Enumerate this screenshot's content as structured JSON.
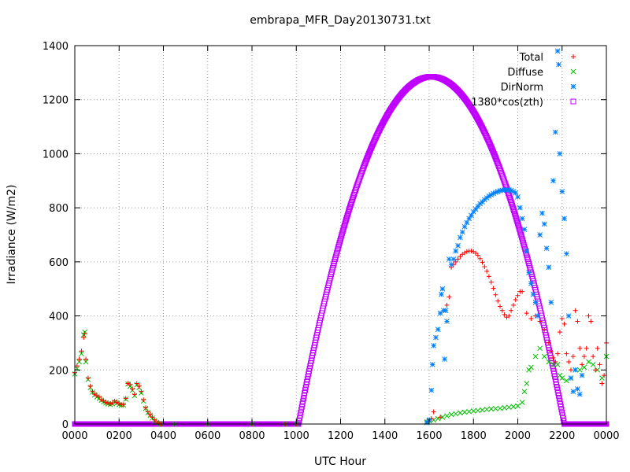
{
  "chart_data": {
    "type": "scatter",
    "title": "embrapa_MFR_Day20130731.txt",
    "xlabel": "UTC Hour",
    "ylabel": "Irradiance (W/m2)",
    "xlim": [
      0,
      24
    ],
    "ylim": [
      0,
      1400
    ],
    "grid": true,
    "legend_position": "top-right",
    "x_ticks": [
      {
        "value": 0,
        "label": "0000"
      },
      {
        "value": 2,
        "label": "0200"
      },
      {
        "value": 4,
        "label": "0400"
      },
      {
        "value": 6,
        "label": "0600"
      },
      {
        "value": 8,
        "label": "0800"
      },
      {
        "value": 10,
        "label": "1000"
      },
      {
        "value": 12,
        "label": "1200"
      },
      {
        "value": 14,
        "label": "1400"
      },
      {
        "value": 16,
        "label": "1600"
      },
      {
        "value": 18,
        "label": "1800"
      },
      {
        "value": 20,
        "label": "2000"
      },
      {
        "value": 22,
        "label": "2200"
      },
      {
        "value": 24,
        "label": "0000"
      }
    ],
    "y_ticks": [
      0,
      200,
      400,
      600,
      800,
      1000,
      1200,
      1400
    ],
    "series": [
      {
        "name": "Total",
        "marker": "plus",
        "color": "#ff0000",
        "points": [
          [
            0.0,
            190
          ],
          [
            0.1,
            215
          ],
          [
            0.2,
            240
          ],
          [
            0.3,
            270
          ],
          [
            0.4,
            320
          ],
          [
            0.45,
            335
          ],
          [
            0.5,
            240
          ],
          [
            0.6,
            170
          ],
          [
            0.7,
            140
          ],
          [
            0.8,
            120
          ],
          [
            0.9,
            110
          ],
          [
            1.0,
            105
          ],
          [
            1.1,
            100
          ],
          [
            1.2,
            90
          ],
          [
            1.3,
            85
          ],
          [
            1.4,
            80
          ],
          [
            1.5,
            78
          ],
          [
            1.6,
            75
          ],
          [
            1.7,
            78
          ],
          [
            1.8,
            85
          ],
          [
            1.9,
            80
          ],
          [
            2.0,
            75
          ],
          [
            2.1,
            72
          ],
          [
            2.2,
            72
          ],
          [
            2.3,
            95
          ],
          [
            2.4,
            150
          ],
          [
            2.5,
            145
          ],
          [
            2.6,
            130
          ],
          [
            2.7,
            110
          ],
          [
            2.8,
            150
          ],
          [
            2.9,
            140
          ],
          [
            3.0,
            120
          ],
          [
            3.1,
            90
          ],
          [
            3.2,
            60
          ],
          [
            3.3,
            45
          ],
          [
            3.4,
            35
          ],
          [
            3.5,
            25
          ],
          [
            3.6,
            15
          ],
          [
            3.7,
            8
          ],
          [
            3.8,
            3
          ],
          [
            3.9,
            0
          ],
          [
            4.5,
            0
          ],
          [
            6.0,
            0
          ],
          [
            8.0,
            0
          ],
          [
            9.5,
            0
          ],
          [
            10.0,
            0
          ],
          [
            15.9,
            10
          ],
          [
            16.1,
            20
          ],
          [
            16.2,
            45
          ],
          [
            16.5,
            25
          ],
          [
            16.8,
            440
          ],
          [
            16.9,
            470
          ],
          [
            17.0,
            580
          ],
          [
            17.1,
            590
          ],
          [
            17.2,
            600
          ],
          [
            17.3,
            610
          ],
          [
            17.4,
            620
          ],
          [
            17.5,
            628
          ],
          [
            17.6,
            633
          ],
          [
            17.7,
            638
          ],
          [
            17.8,
            640
          ],
          [
            17.9,
            640
          ],
          [
            18.0,
            638
          ],
          [
            18.1,
            632
          ],
          [
            18.2,
            624
          ],
          [
            18.3,
            612
          ],
          [
            18.4,
            598
          ],
          [
            18.5,
            582
          ],
          [
            18.6,
            565
          ],
          [
            18.7,
            546
          ],
          [
            18.8,
            525
          ],
          [
            18.9,
            502
          ],
          [
            19.0,
            478
          ],
          [
            19.1,
            455
          ],
          [
            19.2,
            435
          ],
          [
            19.3,
            420
          ],
          [
            19.4,
            405
          ],
          [
            19.5,
            395
          ],
          [
            19.6,
            400
          ],
          [
            19.7,
            420
          ],
          [
            19.8,
            440
          ],
          [
            19.9,
            460
          ],
          [
            20.0,
            475
          ],
          [
            20.1,
            490
          ],
          [
            20.2,
            490
          ],
          [
            20.4,
            410
          ],
          [
            20.6,
            390
          ],
          [
            20.8,
            400
          ],
          [
            21.0,
            380
          ],
          [
            21.2,
            350
          ],
          [
            21.4,
            300
          ],
          [
            21.5,
            270
          ],
          [
            21.6,
            245
          ],
          [
            21.7,
            230
          ],
          [
            21.8,
            260
          ],
          [
            21.9,
            340
          ],
          [
            22.0,
            390
          ],
          [
            22.1,
            370
          ],
          [
            22.2,
            260
          ],
          [
            22.3,
            230
          ],
          [
            22.4,
            200
          ],
          [
            22.5,
            250
          ],
          [
            22.6,
            420
          ],
          [
            22.7,
            380
          ],
          [
            22.8,
            280
          ],
          [
            22.9,
            220
          ],
          [
            23.0,
            250
          ],
          [
            23.1,
            280
          ],
          [
            23.2,
            400
          ],
          [
            23.3,
            380
          ],
          [
            23.4,
            250
          ],
          [
            23.5,
            200
          ],
          [
            23.6,
            280
          ],
          [
            23.7,
            220
          ],
          [
            23.8,
            150
          ],
          [
            23.9,
            180
          ],
          [
            24.0,
            300
          ]
        ]
      },
      {
        "name": "Diffuse",
        "marker": "cross",
        "color": "#00c000",
        "points": [
          [
            0.0,
            185
          ],
          [
            0.1,
            205
          ],
          [
            0.2,
            230
          ],
          [
            0.3,
            260
          ],
          [
            0.4,
            330
          ],
          [
            0.45,
            340
          ],
          [
            0.5,
            230
          ],
          [
            0.6,
            165
          ],
          [
            0.7,
            135
          ],
          [
            0.8,
            118
          ],
          [
            0.9,
            108
          ],
          [
            1.0,
            100
          ],
          [
            1.1,
            95
          ],
          [
            1.2,
            88
          ],
          [
            1.3,
            82
          ],
          [
            1.4,
            78
          ],
          [
            1.5,
            75
          ],
          [
            1.6,
            72
          ],
          [
            1.7,
            75
          ],
          [
            1.8,
            82
          ],
          [
            1.9,
            78
          ],
          [
            2.0,
            72
          ],
          [
            2.1,
            70
          ],
          [
            2.2,
            70
          ],
          [
            2.3,
            92
          ],
          [
            2.4,
            148
          ],
          [
            2.5,
            140
          ],
          [
            2.6,
            125
          ],
          [
            2.7,
            105
          ],
          [
            2.8,
            145
          ],
          [
            2.9,
            135
          ],
          [
            3.0,
            115
          ],
          [
            3.1,
            85
          ],
          [
            3.2,
            58
          ],
          [
            3.3,
            42
          ],
          [
            3.4,
            32
          ],
          [
            3.5,
            22
          ],
          [
            3.6,
            12
          ],
          [
            3.7,
            6
          ],
          [
            3.8,
            2
          ],
          [
            3.9,
            0
          ],
          [
            4.5,
            0
          ],
          [
            6.0,
            0
          ],
          [
            8.0,
            0
          ],
          [
            9.5,
            0
          ],
          [
            10.0,
            0
          ],
          [
            15.9,
            8
          ],
          [
            16.0,
            12
          ],
          [
            16.2,
            15
          ],
          [
            16.4,
            20
          ],
          [
            16.6,
            25
          ],
          [
            16.8,
            30
          ],
          [
            17.0,
            35
          ],
          [
            17.2,
            38
          ],
          [
            17.4,
            41
          ],
          [
            17.6,
            44
          ],
          [
            17.8,
            46
          ],
          [
            18.0,
            48
          ],
          [
            18.2,
            50
          ],
          [
            18.4,
            52
          ],
          [
            18.6,
            54
          ],
          [
            18.8,
            56
          ],
          [
            19.0,
            57
          ],
          [
            19.2,
            58
          ],
          [
            19.4,
            60
          ],
          [
            19.6,
            62
          ],
          [
            19.8,
            64
          ],
          [
            20.0,
            67
          ],
          [
            20.2,
            80
          ],
          [
            20.3,
            120
          ],
          [
            20.4,
            150
          ],
          [
            20.5,
            200
          ],
          [
            20.6,
            210
          ],
          [
            20.8,
            250
          ],
          [
            21.0,
            280
          ],
          [
            21.2,
            250
          ],
          [
            21.4,
            230
          ],
          [
            21.6,
            220
          ],
          [
            21.8,
            220
          ],
          [
            21.9,
            180
          ],
          [
            22.0,
            170
          ],
          [
            22.2,
            160
          ],
          [
            22.4,
            170
          ],
          [
            22.6,
            200
          ],
          [
            22.8,
            200
          ],
          [
            23.0,
            210
          ],
          [
            23.2,
            230
          ],
          [
            23.4,
            220
          ],
          [
            23.6,
            200
          ],
          [
            23.8,
            170
          ],
          [
            24.0,
            250
          ]
        ]
      },
      {
        "name": "DirNorm",
        "marker": "star",
        "color": "#0080ff",
        "points": [
          [
            15.9,
            5
          ],
          [
            16.0,
            15
          ],
          [
            16.1,
            125
          ],
          [
            16.15,
            220
          ],
          [
            16.2,
            290
          ],
          [
            16.3,
            320
          ],
          [
            16.4,
            350
          ],
          [
            16.5,
            410
          ],
          [
            16.55,
            480
          ],
          [
            16.6,
            500
          ],
          [
            16.65,
            420
          ],
          [
            16.7,
            240
          ],
          [
            16.75,
            420
          ],
          [
            16.8,
            380
          ],
          [
            16.9,
            610
          ],
          [
            17.0,
            590
          ],
          [
            17.1,
            610
          ],
          [
            17.2,
            640
          ],
          [
            17.3,
            660
          ],
          [
            17.4,
            690
          ],
          [
            17.5,
            710
          ],
          [
            17.6,
            730
          ],
          [
            17.7,
            745
          ],
          [
            17.8,
            760
          ],
          [
            17.9,
            772
          ],
          [
            18.0,
            785
          ],
          [
            18.1,
            795
          ],
          [
            18.2,
            805
          ],
          [
            18.3,
            815
          ],
          [
            18.4,
            822
          ],
          [
            18.5,
            830
          ],
          [
            18.6,
            837
          ],
          [
            18.7,
            843
          ],
          [
            18.8,
            848
          ],
          [
            18.9,
            853
          ],
          [
            19.0,
            857
          ],
          [
            19.1,
            860
          ],
          [
            19.2,
            863
          ],
          [
            19.3,
            865
          ],
          [
            19.4,
            866
          ],
          [
            19.5,
            867
          ],
          [
            19.6,
            866
          ],
          [
            19.7,
            864
          ],
          [
            19.8,
            860
          ],
          [
            19.9,
            855
          ],
          [
            20.0,
            840
          ],
          [
            20.1,
            800
          ],
          [
            20.2,
            760
          ],
          [
            20.3,
            720
          ],
          [
            20.4,
            640
          ],
          [
            20.5,
            560
          ],
          [
            20.6,
            520
          ],
          [
            20.7,
            480
          ],
          [
            20.8,
            450
          ],
          [
            20.9,
            400
          ],
          [
            21.0,
            700
          ],
          [
            21.1,
            780
          ],
          [
            21.2,
            740
          ],
          [
            21.3,
            650
          ],
          [
            21.4,
            580
          ],
          [
            21.5,
            450
          ],
          [
            21.6,
            900
          ],
          [
            21.7,
            1080
          ],
          [
            21.8,
            1380
          ],
          [
            21.85,
            1330
          ],
          [
            21.9,
            1000
          ],
          [
            22.0,
            860
          ],
          [
            22.1,
            760
          ],
          [
            22.2,
            630
          ],
          [
            22.3,
            400
          ],
          [
            22.4,
            170
          ],
          [
            22.5,
            120
          ],
          [
            22.6,
            200
          ],
          [
            22.7,
            130
          ],
          [
            22.8,
            110
          ],
          [
            22.9,
            180
          ]
        ]
      },
      {
        "name": "1380*cos(zth)",
        "marker": "square",
        "color": "#c000ff",
        "curve": {
          "start": 10.1,
          "peak": 16.1,
          "peak_value": 1285,
          "end": 22.1
        }
      }
    ]
  }
}
